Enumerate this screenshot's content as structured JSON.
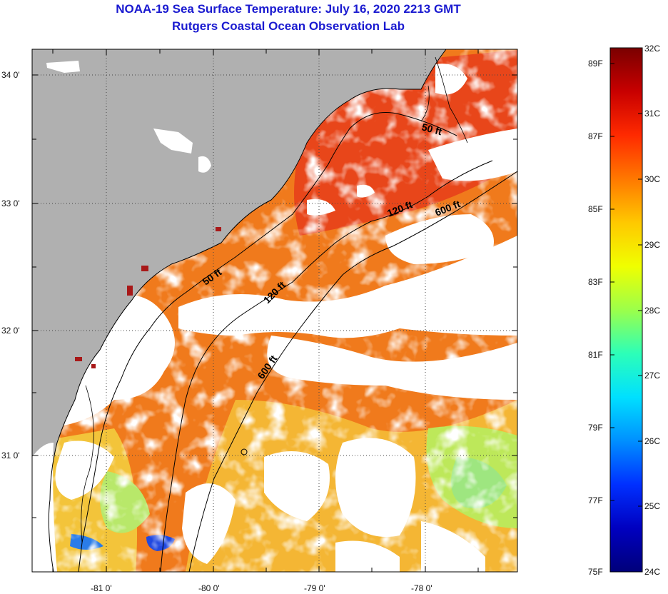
{
  "title": {
    "line1": "NOAA-19 Sea Surface Temperature:  July 16, 2020 2213 GMT",
    "line2": "Rutgers Coastal Ocean Observation Lab"
  },
  "map": {
    "lon_range": [
      -81.6,
      -77.2
    ],
    "lat_range": [
      30.2,
      34.25
    ],
    "lon_ticks": [
      {
        "value": -81,
        "label": "-81 0'"
      },
      {
        "value": -80,
        "label": "-80 0'"
      },
      {
        "value": -79,
        "label": "-79 0'"
      },
      {
        "value": -78,
        "label": "-78 0'"
      }
    ],
    "lat_ticks": [
      {
        "value": 34,
        "label": "34 0'"
      },
      {
        "value": 33,
        "label": "33 0'"
      },
      {
        "value": 32,
        "label": "32 0'"
      },
      {
        "value": 31,
        "label": "31 0'"
      }
    ],
    "contour_labels": [
      "50 ft",
      "120 ft",
      "600 ft",
      "50 ft",
      "120 ft",
      "600 ft"
    ],
    "colors": {
      "land": "#b0b0b0",
      "cloud": "#ffffff",
      "warm": "#f06a14",
      "hot": "#e8401a",
      "mild": "#f5c030",
      "cool": "#9de870",
      "cold": "#1a4ee6"
    }
  },
  "colorbar": {
    "celsius_labels": [
      "32C",
      "31C",
      "30C",
      "29C",
      "28C",
      "27C",
      "26C",
      "25C",
      "24C"
    ],
    "fahrenheit_labels": [
      "89F",
      "87F",
      "85F",
      "83F",
      "81F",
      "79F",
      "77F",
      "75F"
    ],
    "stops": [
      "#7a0000",
      "#c80000",
      "#ff2a00",
      "#ff7800",
      "#ffc800",
      "#f0ff00",
      "#9cff4a",
      "#2cffb8",
      "#00e0ff",
      "#0090ff",
      "#0030ff",
      "#0000c0",
      "#00007a"
    ]
  }
}
